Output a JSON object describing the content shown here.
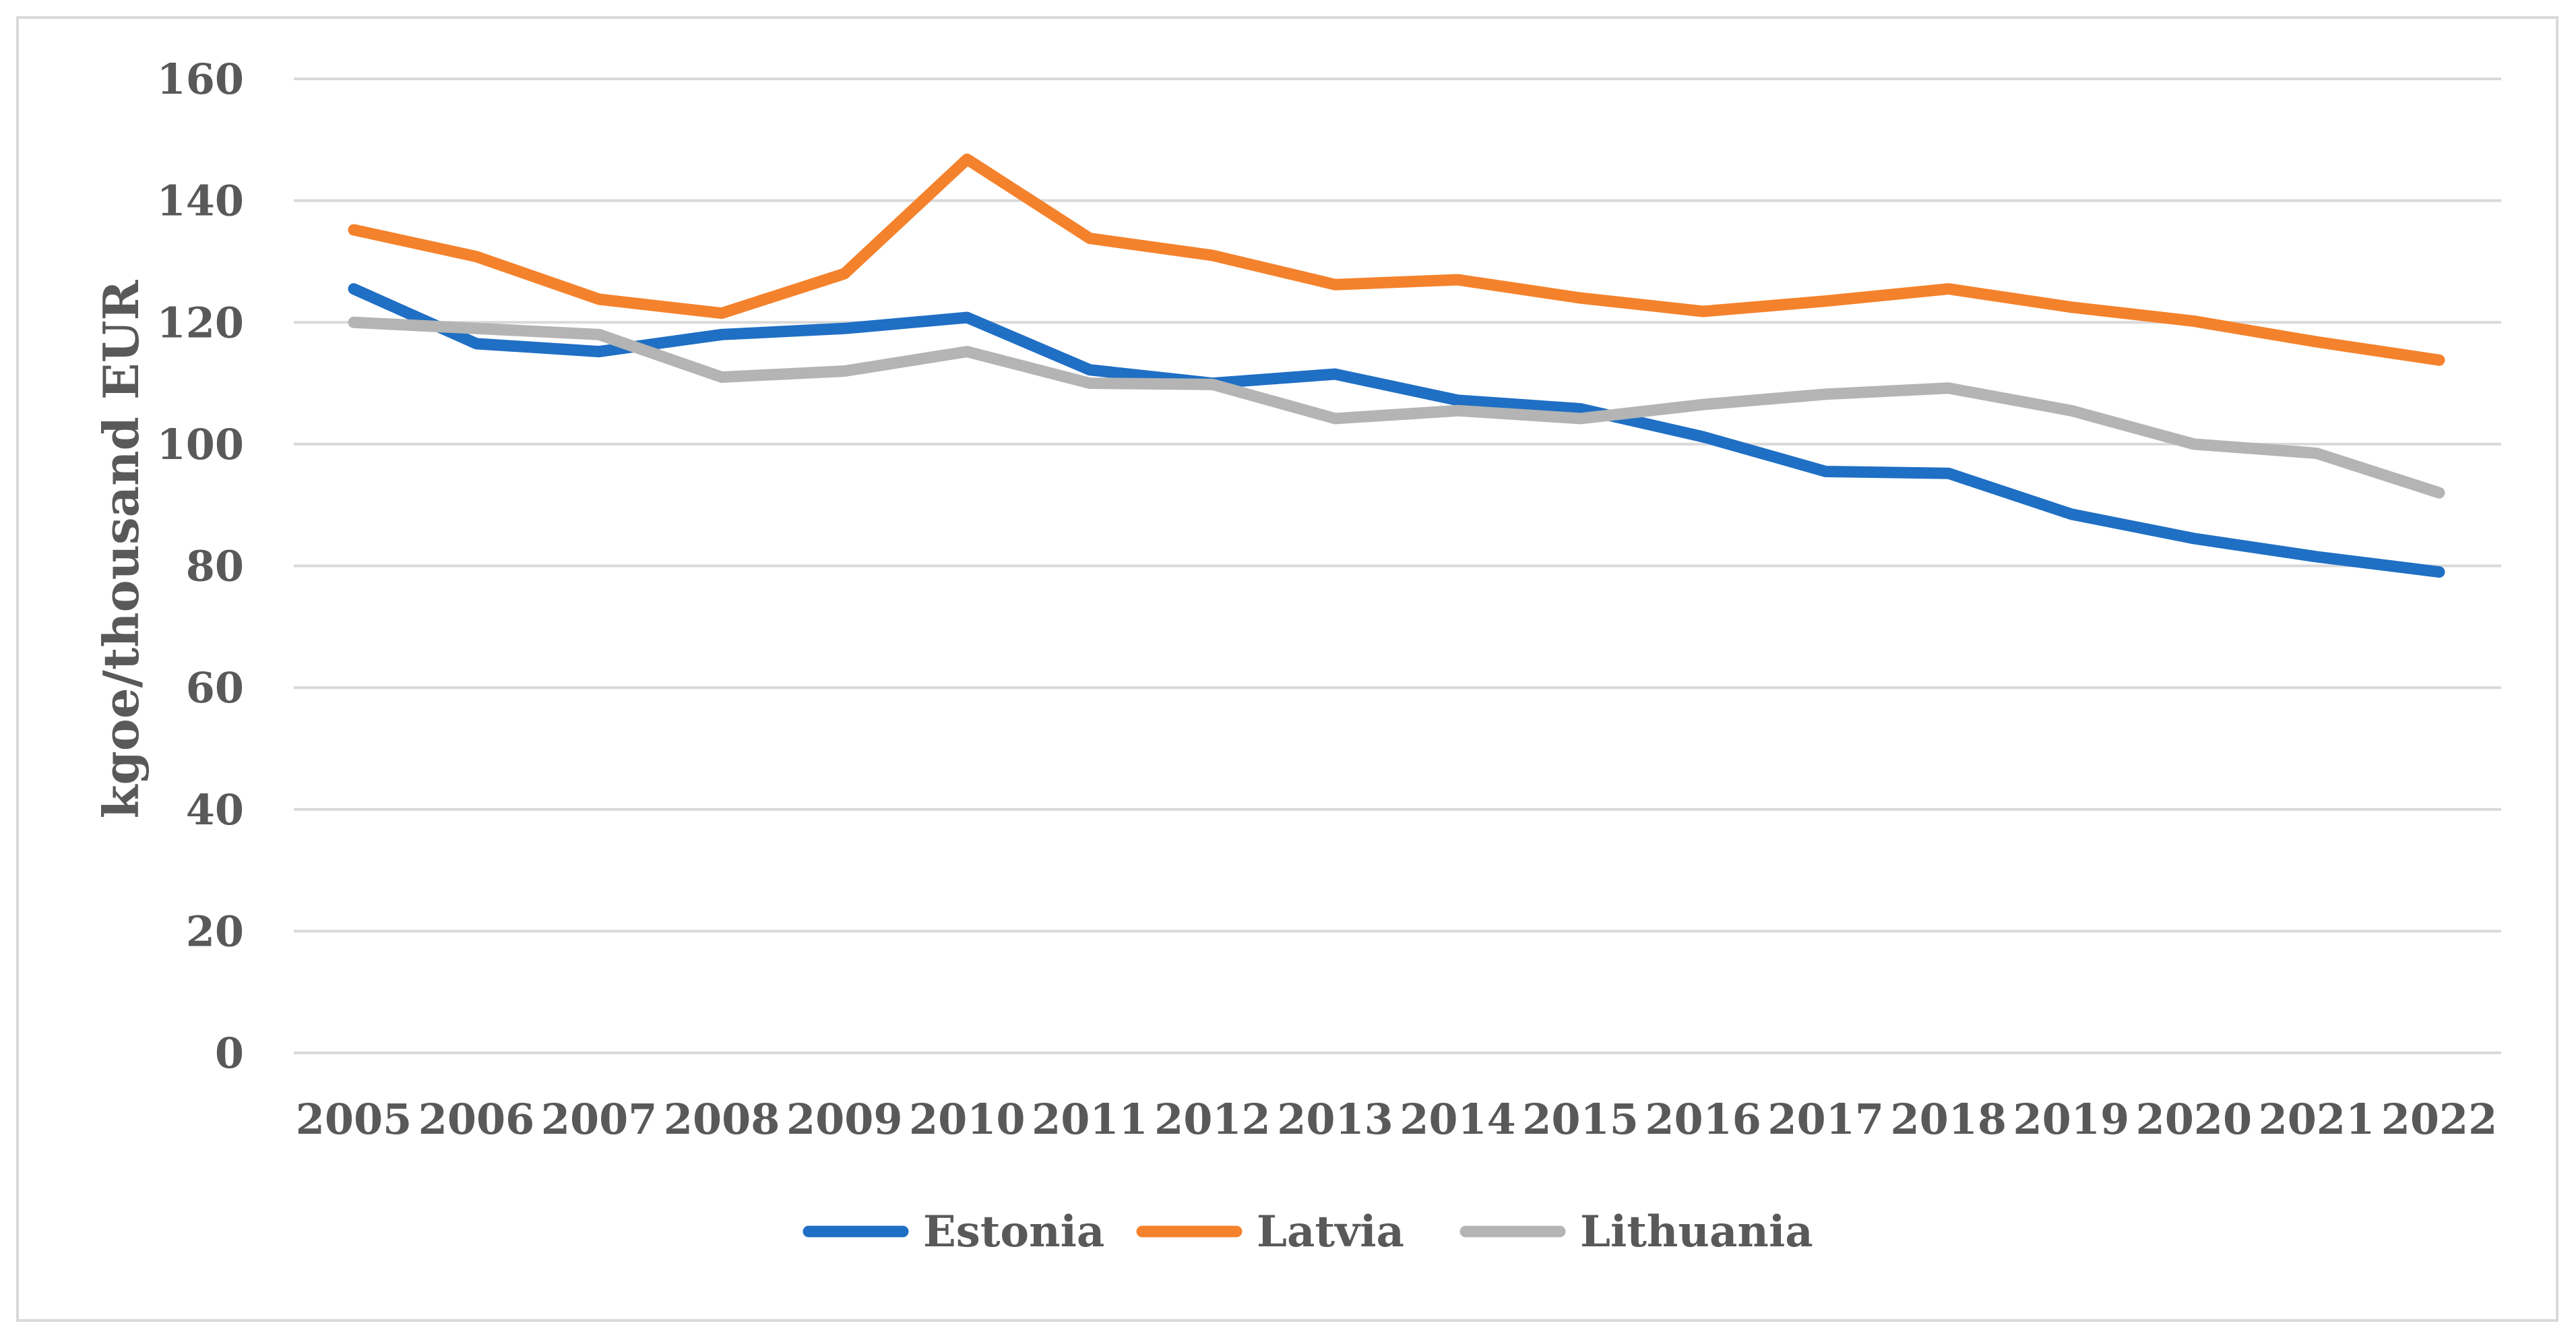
{
  "chart_data": {
    "type": "line",
    "title": "",
    "xlabel": "",
    "ylabel": "kgoe/thousand EUR",
    "ylim": [
      0,
      160
    ],
    "yticks": [
      0,
      20,
      40,
      60,
      80,
      100,
      120,
      140,
      160
    ],
    "grid": true,
    "legend_position": "bottom",
    "categories": [
      "2005",
      "2006",
      "2007",
      "2008",
      "2009",
      "2010",
      "2011",
      "2012",
      "2013",
      "2014",
      "2015",
      "2016",
      "2017",
      "2018",
      "2019",
      "2020",
      "2021",
      "2022"
    ],
    "series": [
      {
        "name": "Estonia",
        "color": "#1f6fc4",
        "values": [
          125.5,
          116.5,
          115.2,
          118,
          119,
          120.8,
          112.2,
          110,
          111.5,
          107.2,
          105.8,
          101.2,
          95.5,
          95.2,
          88.5,
          84.5,
          81.5,
          79
        ]
      },
      {
        "name": "Latvia",
        "color": "#f4822c",
        "values": [
          135.2,
          130.8,
          123.8,
          121.5,
          128,
          146.8,
          133.8,
          131,
          126.2,
          127,
          124,
          121.8,
          123.5,
          125.5,
          122.5,
          120.2,
          116.8,
          113.8
        ]
      },
      {
        "name": "Lithuania",
        "color": "#b4b4b4",
        "values": [
          120,
          119,
          118,
          111,
          112,
          115.2,
          110,
          109.8,
          104.2,
          105.5,
          104.2,
          106.5,
          108.2,
          109.2,
          105.5,
          100,
          98.5,
          92
        ]
      }
    ]
  }
}
